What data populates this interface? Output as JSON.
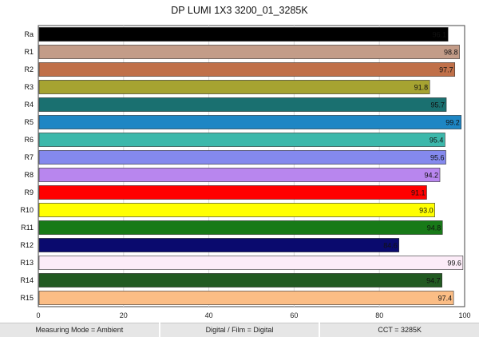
{
  "chart_data": {
    "type": "bar",
    "orientation": "horizontal",
    "title": "DP LUMI 1X3 3200_01_3285K",
    "categories": [
      "Ra",
      "R1",
      "R2",
      "R3",
      "R4",
      "R5",
      "R6",
      "R7",
      "R8",
      "R9",
      "R10",
      "R11",
      "R12",
      "R13",
      "R14",
      "R15"
    ],
    "values": [
      96.1,
      98.8,
      97.7,
      91.8,
      95.7,
      99.2,
      95.4,
      95.6,
      94.2,
      91.1,
      93.0,
      94.8,
      84.6,
      99.6,
      94.7,
      97.4
    ],
    "value_labels": [
      "96.1",
      "98.8",
      "97.7",
      "91.8",
      "95.7",
      "99.2",
      "95.4",
      "95.6",
      "94.2",
      "91.1",
      "93.0",
      "94.8",
      "84.6",
      "99.6",
      "94.7",
      "97.4"
    ],
    "colors": [
      "#000000",
      "#c39c88",
      "#c07049",
      "#a6a331",
      "#1a7070",
      "#1e86c4",
      "#3cb8ab",
      "#8489ee",
      "#b886ee",
      "#ff0000",
      "#ffff00",
      "#187a18",
      "#0a0a6e",
      "#fcecf8",
      "#225a22",
      "#fbbd85"
    ],
    "xlim": [
      0,
      100
    ],
    "xticks": [
      0,
      20,
      40,
      60,
      80,
      100
    ],
    "grid": "vertical"
  },
  "footer": {
    "measuring_mode": "Measuring Mode = Ambient",
    "digital_film": "Digital / Film = Digital",
    "cct": "CCT = 3285K"
  }
}
